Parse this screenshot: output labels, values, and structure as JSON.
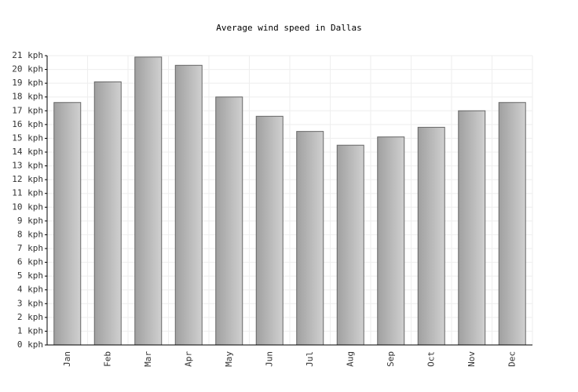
{
  "chart_data": {
    "type": "bar",
    "title": "Average wind speed in Dallas",
    "categories": [
      "Jan",
      "Feb",
      "Mar",
      "Apr",
      "May",
      "Jun",
      "Jul",
      "Aug",
      "Sep",
      "Oct",
      "Nov",
      "Dec"
    ],
    "values": [
      17.6,
      19.1,
      20.9,
      20.3,
      18.0,
      16.6,
      15.5,
      14.5,
      15.1,
      15.8,
      17.0,
      17.6
    ],
    "color": "#a0a0a0",
    "ylim": [
      0,
      21
    ],
    "yticks": [
      {
        "value": 0,
        "label": "0 kph"
      },
      {
        "value": 1,
        "label": "1 kph"
      },
      {
        "value": 2,
        "label": "2 kph"
      },
      {
        "value": 3,
        "label": "3 kph"
      },
      {
        "value": 4,
        "label": "4 kph"
      },
      {
        "value": 5,
        "label": "5 kph"
      },
      {
        "value": 6,
        "label": "6 kph"
      },
      {
        "value": 7,
        "label": "7 kph"
      },
      {
        "value": 8,
        "label": "8 kph"
      },
      {
        "value": 9,
        "label": "9 kph"
      },
      {
        "value": 10,
        "label": "10 kph"
      },
      {
        "value": 11,
        "label": "11 kph"
      },
      {
        "value": 12,
        "label": "12 kph"
      },
      {
        "value": 13,
        "label": "13 kph"
      },
      {
        "value": 14,
        "label": "14 kph"
      },
      {
        "value": 15,
        "label": "15 kph"
      },
      {
        "value": 16,
        "label": "16 kph"
      },
      {
        "value": 17,
        "label": "17 kph"
      },
      {
        "value": 18,
        "label": "18 kph"
      },
      {
        "value": 19,
        "label": "19 kph"
      },
      {
        "value": 20,
        "label": "20 kph"
      },
      {
        "value": 21,
        "label": "21 kph"
      }
    ],
    "grid": true
  }
}
